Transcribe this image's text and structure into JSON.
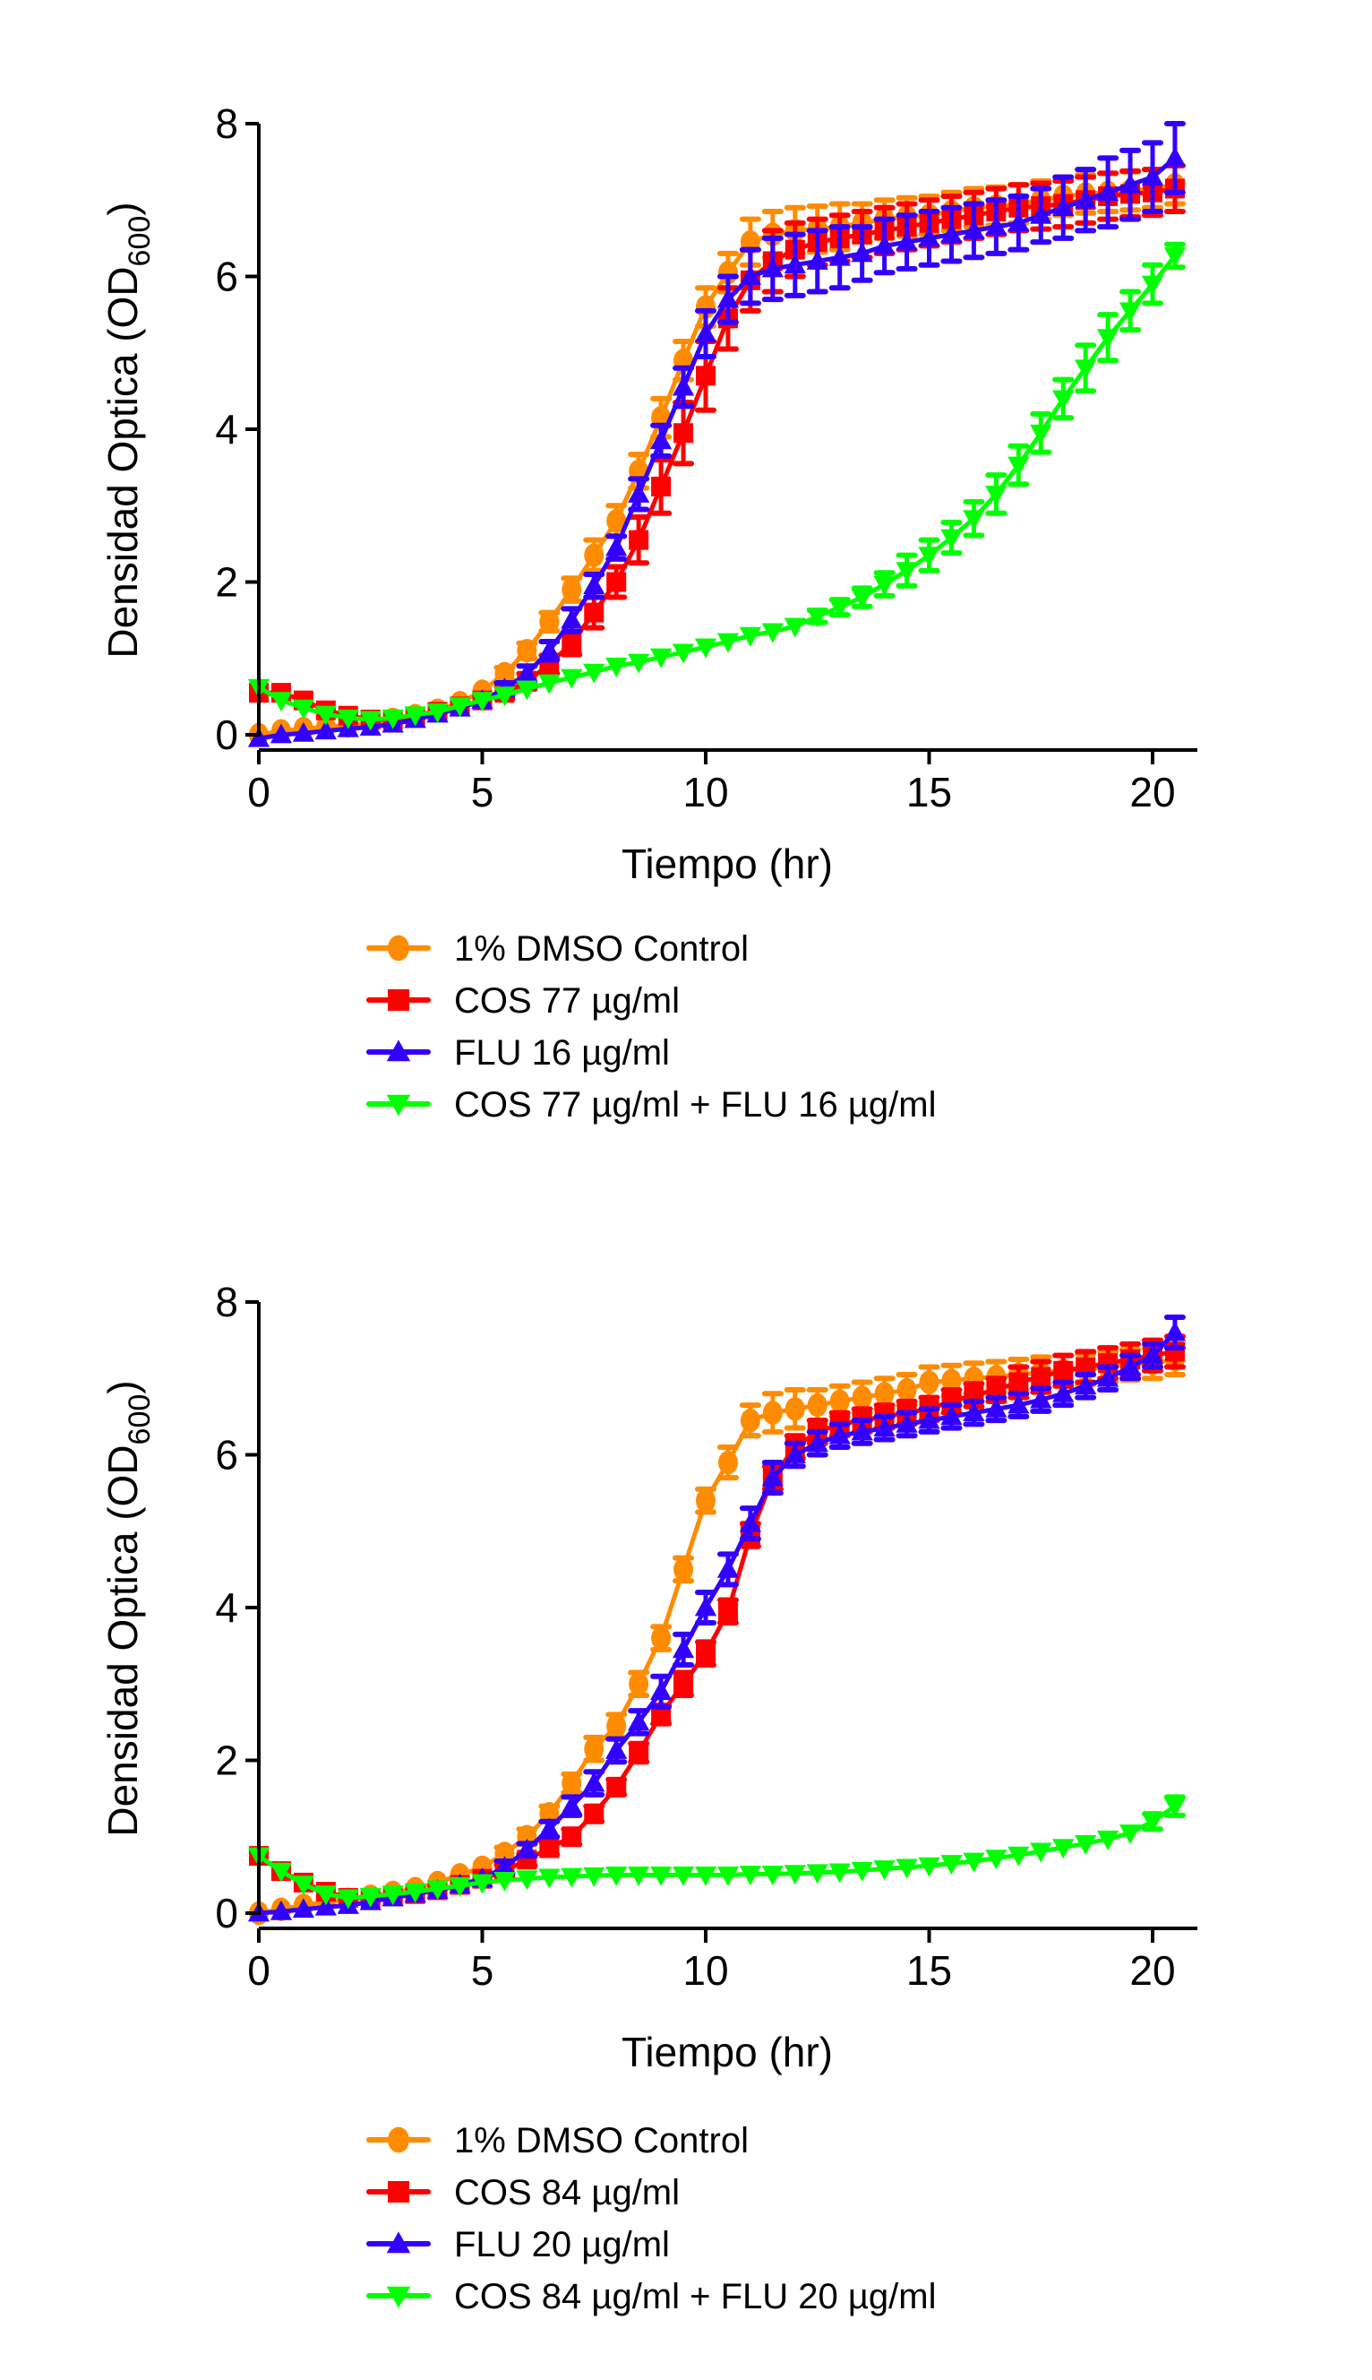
{
  "chart_data": [
    {
      "type": "line",
      "title": "",
      "xlabel": "Tiempo (hr)",
      "ylabel": "Densidad Optica (OD",
      "ylabel_subscript": "600",
      "ylabel_suffix": ")",
      "xlim": [
        0,
        21
      ],
      "ylim": [
        0,
        8
      ],
      "xticks": [
        0,
        5,
        10,
        15,
        20
      ],
      "yticks": [
        0,
        2,
        4,
        6,
        8
      ],
      "xtick_labels": [
        "0",
        "5",
        "10",
        "15",
        "20"
      ],
      "ytick_labels": [
        "0",
        "2",
        "4",
        "6",
        "8"
      ],
      "grid": false,
      "legend_position": "below",
      "x": [
        0,
        0.5,
        1,
        1.5,
        2,
        2.5,
        3,
        3.5,
        4,
        4.5,
        5,
        5.5,
        6,
        6.5,
        7,
        7.5,
        8,
        8.5,
        9,
        9.5,
        10,
        10.5,
        11,
        11.5,
        12,
        12.5,
        13,
        13.5,
        14,
        14.5,
        15,
        15.5,
        16,
        16.5,
        17,
        17.5,
        18,
        18.5,
        19,
        19.5,
        20,
        20.5
      ],
      "series": [
        {
          "name": "1% DMSO Control",
          "color": "#FF8C00",
          "marker": "circle",
          "values": [
            0.0,
            0.05,
            0.08,
            0.1,
            0.12,
            0.15,
            0.2,
            0.25,
            0.32,
            0.42,
            0.57,
            0.8,
            1.1,
            1.48,
            1.9,
            2.35,
            2.8,
            3.45,
            4.15,
            4.9,
            5.6,
            6.05,
            6.45,
            6.55,
            6.6,
            6.62,
            6.65,
            6.7,
            6.75,
            6.78,
            6.8,
            6.85,
            6.9,
            6.92,
            6.95,
            7.0,
            7.05,
            7.08,
            7.1,
            7.12,
            7.15,
            7.2
          ],
          "error": [
            0.03,
            0.03,
            0.03,
            0.03,
            0.03,
            0.03,
            0.03,
            0.03,
            0.04,
            0.05,
            0.06,
            0.08,
            0.1,
            0.12,
            0.15,
            0.2,
            0.2,
            0.22,
            0.25,
            0.25,
            0.25,
            0.25,
            0.3,
            0.3,
            0.3,
            0.3,
            0.3,
            0.25,
            0.25,
            0.25,
            0.25,
            0.25,
            0.25,
            0.25,
            0.25,
            0.25,
            0.25,
            0.25,
            0.25,
            0.25,
            0.25,
            0.25
          ]
        },
        {
          "name": "COS 77 µg/ml",
          "color": "#FF0000",
          "marker": "square",
          "values": [
            0.55,
            0.55,
            0.45,
            0.32,
            0.25,
            0.2,
            0.2,
            0.24,
            0.3,
            0.37,
            0.45,
            0.55,
            0.7,
            0.92,
            1.2,
            1.6,
            2.0,
            2.55,
            3.25,
            3.95,
            4.7,
            5.45,
            5.95,
            6.2,
            6.35,
            6.45,
            6.5,
            6.55,
            6.6,
            6.65,
            6.7,
            6.75,
            6.8,
            6.85,
            6.9,
            6.92,
            6.95,
            7.0,
            7.05,
            7.08,
            7.1,
            7.15
          ],
          "error": [
            0.03,
            0.03,
            0.03,
            0.03,
            0.03,
            0.03,
            0.03,
            0.03,
            0.04,
            0.05,
            0.06,
            0.08,
            0.1,
            0.12,
            0.15,
            0.2,
            0.2,
            0.3,
            0.35,
            0.4,
            0.45,
            0.4,
            0.4,
            0.4,
            0.35,
            0.3,
            0.3,
            0.3,
            0.3,
            0.3,
            0.3,
            0.3,
            0.3,
            0.3,
            0.3,
            0.3,
            0.3,
            0.3,
            0.3,
            0.3,
            0.3,
            0.3
          ]
        },
        {
          "name": "FLU 16 µg/ml",
          "color": "#3300FF",
          "marker": "triangle-up",
          "values": [
            -0.05,
            0.0,
            0.02,
            0.05,
            0.08,
            0.1,
            0.14,
            0.2,
            0.27,
            0.35,
            0.45,
            0.6,
            0.8,
            1.1,
            1.5,
            1.95,
            2.45,
            3.15,
            3.85,
            4.55,
            5.25,
            5.7,
            6.0,
            6.1,
            6.15,
            6.2,
            6.25,
            6.3,
            6.4,
            6.45,
            6.5,
            6.55,
            6.6,
            6.65,
            6.7,
            6.8,
            6.9,
            7.0,
            7.1,
            7.2,
            7.3,
            7.55
          ],
          "error": [
            0.03,
            0.03,
            0.03,
            0.03,
            0.03,
            0.03,
            0.03,
            0.03,
            0.04,
            0.05,
            0.06,
            0.08,
            0.1,
            0.12,
            0.15,
            0.15,
            0.15,
            0.2,
            0.2,
            0.25,
            0.3,
            0.3,
            0.35,
            0.4,
            0.4,
            0.4,
            0.4,
            0.35,
            0.35,
            0.35,
            0.35,
            0.35,
            0.35,
            0.35,
            0.35,
            0.35,
            0.4,
            0.4,
            0.45,
            0.45,
            0.45,
            0.45
          ]
        },
        {
          "name": "COS 77 µg/ml + FLU 16 µg/ml",
          "color": "#00FF00",
          "marker": "triangle-down",
          "values": [
            0.62,
            0.45,
            0.35,
            0.27,
            0.22,
            0.2,
            0.22,
            0.26,
            0.3,
            0.38,
            0.45,
            0.52,
            0.6,
            0.68,
            0.75,
            0.82,
            0.9,
            0.95,
            1.02,
            1.08,
            1.15,
            1.22,
            1.3,
            1.35,
            1.42,
            1.55,
            1.67,
            1.8,
            1.97,
            2.15,
            2.35,
            2.58,
            2.83,
            3.15,
            3.53,
            3.95,
            4.4,
            4.8,
            5.2,
            5.55,
            5.9,
            6.27
          ],
          "error": [
            0.03,
            0.03,
            0.03,
            0.03,
            0.03,
            0.03,
            0.03,
            0.03,
            0.03,
            0.03,
            0.03,
            0.03,
            0.03,
            0.03,
            0.03,
            0.03,
            0.03,
            0.03,
            0.03,
            0.03,
            0.03,
            0.03,
            0.03,
            0.03,
            0.05,
            0.08,
            0.1,
            0.12,
            0.15,
            0.2,
            0.2,
            0.2,
            0.22,
            0.25,
            0.25,
            0.25,
            0.25,
            0.3,
            0.3,
            0.25,
            0.25,
            0.15
          ]
        }
      ]
    },
    {
      "type": "line",
      "title": "",
      "xlabel": "Tiempo (hr)",
      "ylabel": "Densidad Optica (OD",
      "ylabel_subscript": "600",
      "ylabel_suffix": ")",
      "xlim": [
        0,
        21
      ],
      "ylim": [
        0,
        8
      ],
      "xticks": [
        0,
        5,
        10,
        15,
        20
      ],
      "yticks": [
        0,
        2,
        4,
        6,
        8
      ],
      "xtick_labels": [
        "0",
        "5",
        "10",
        "15",
        "20"
      ],
      "ytick_labels": [
        "0",
        "2",
        "4",
        "6",
        "8"
      ],
      "grid": false,
      "legend_position": "below",
      "x": [
        0,
        0.5,
        1,
        1.5,
        2,
        2.5,
        3,
        3.5,
        4,
        4.5,
        5,
        5.5,
        6,
        6.5,
        7,
        7.5,
        8,
        8.5,
        9,
        9.5,
        10,
        10.5,
        11,
        11.5,
        12,
        12.5,
        13,
        13.5,
        14,
        14.5,
        15,
        15.5,
        16,
        16.5,
        17,
        17.5,
        18,
        18.5,
        19,
        19.5,
        20,
        20.5
      ],
      "series": [
        {
          "name": "1% DMSO Control",
          "color": "#FF8C00",
          "marker": "circle",
          "values": [
            0.0,
            0.05,
            0.1,
            0.15,
            0.18,
            0.22,
            0.27,
            0.32,
            0.4,
            0.5,
            0.6,
            0.78,
            1.0,
            1.3,
            1.7,
            2.15,
            2.45,
            3.0,
            3.6,
            4.5,
            5.4,
            5.9,
            6.45,
            6.55,
            6.6,
            6.65,
            6.7,
            6.75,
            6.8,
            6.85,
            6.95,
            6.97,
            7.0,
            7.02,
            7.05,
            7.08,
            7.1,
            7.12,
            7.15,
            7.18,
            7.2,
            7.25
          ],
          "error": [
            0.03,
            0.03,
            0.03,
            0.03,
            0.03,
            0.03,
            0.03,
            0.03,
            0.04,
            0.05,
            0.06,
            0.08,
            0.1,
            0.1,
            0.12,
            0.15,
            0.15,
            0.15,
            0.15,
            0.15,
            0.15,
            0.2,
            0.2,
            0.25,
            0.25,
            0.2,
            0.2,
            0.2,
            0.2,
            0.2,
            0.2,
            0.2,
            0.2,
            0.2,
            0.2,
            0.2,
            0.2,
            0.2,
            0.2,
            0.2,
            0.2,
            0.2
          ]
        },
        {
          "name": "COS 84 µg/ml",
          "color": "#FF0000",
          "marker": "square",
          "values": [
            0.75,
            0.55,
            0.4,
            0.28,
            0.2,
            0.2,
            0.22,
            0.25,
            0.3,
            0.37,
            0.45,
            0.55,
            0.7,
            0.85,
            1.0,
            1.3,
            1.65,
            2.1,
            2.6,
            3.0,
            3.4,
            3.95,
            4.95,
            5.7,
            6.1,
            6.3,
            6.4,
            6.45,
            6.5,
            6.55,
            6.6,
            6.7,
            6.78,
            6.85,
            6.95,
            7.02,
            7.1,
            7.15,
            7.2,
            7.25,
            7.3,
            7.35
          ],
          "error": [
            0.03,
            0.03,
            0.03,
            0.03,
            0.03,
            0.03,
            0.03,
            0.03,
            0.04,
            0.05,
            0.06,
            0.08,
            0.08,
            0.08,
            0.1,
            0.1,
            0.1,
            0.12,
            0.12,
            0.15,
            0.15,
            0.15,
            0.15,
            0.15,
            0.15,
            0.15,
            0.15,
            0.15,
            0.15,
            0.15,
            0.15,
            0.15,
            0.15,
            0.15,
            0.2,
            0.2,
            0.2,
            0.2,
            0.2,
            0.2,
            0.2,
            0.2
          ]
        },
        {
          "name": "FLU 20 µg/ml",
          "color": "#3300FF",
          "marker": "triangle-up",
          "values": [
            0.0,
            0.02,
            0.05,
            0.08,
            0.1,
            0.15,
            0.2,
            0.25,
            0.3,
            0.37,
            0.45,
            0.6,
            0.83,
            1.1,
            1.4,
            1.7,
            2.13,
            2.5,
            2.9,
            3.45,
            4.0,
            4.5,
            5.1,
            5.7,
            6.0,
            6.15,
            6.25,
            6.3,
            6.35,
            6.4,
            6.45,
            6.5,
            6.55,
            6.6,
            6.65,
            6.72,
            6.8,
            6.9,
            7.0,
            7.15,
            7.3,
            7.6
          ],
          "error": [
            0.03,
            0.03,
            0.03,
            0.03,
            0.03,
            0.03,
            0.03,
            0.03,
            0.04,
            0.05,
            0.06,
            0.08,
            0.08,
            0.1,
            0.12,
            0.15,
            0.15,
            0.15,
            0.2,
            0.2,
            0.2,
            0.2,
            0.2,
            0.2,
            0.15,
            0.15,
            0.15,
            0.15,
            0.15,
            0.15,
            0.15,
            0.15,
            0.15,
            0.15,
            0.15,
            0.15,
            0.15,
            0.15,
            0.15,
            0.15,
            0.15,
            0.2
          ]
        },
        {
          "name": "COS 84 µg/ml + FLU 20 µg/ml",
          "color": "#00FF00",
          "marker": "triangle-down",
          "values": [
            0.75,
            0.55,
            0.38,
            0.25,
            0.2,
            0.22,
            0.25,
            0.28,
            0.32,
            0.36,
            0.4,
            0.43,
            0.45,
            0.47,
            0.48,
            0.49,
            0.5,
            0.5,
            0.5,
            0.5,
            0.5,
            0.5,
            0.51,
            0.51,
            0.52,
            0.53,
            0.54,
            0.56,
            0.58,
            0.6,
            0.62,
            0.65,
            0.68,
            0.72,
            0.76,
            0.81,
            0.86,
            0.91,
            0.97,
            1.05,
            1.2,
            1.4
          ],
          "error": [
            0.03,
            0.03,
            0.03,
            0.03,
            0.03,
            0.03,
            0.03,
            0.03,
            0.03,
            0.03,
            0.03,
            0.03,
            0.03,
            0.03,
            0.03,
            0.03,
            0.03,
            0.03,
            0.03,
            0.03,
            0.03,
            0.03,
            0.03,
            0.03,
            0.03,
            0.03,
            0.03,
            0.03,
            0.03,
            0.03,
            0.03,
            0.03,
            0.03,
            0.03,
            0.03,
            0.03,
            0.03,
            0.03,
            0.03,
            0.05,
            0.1,
            0.12
          ]
        }
      ]
    }
  ]
}
